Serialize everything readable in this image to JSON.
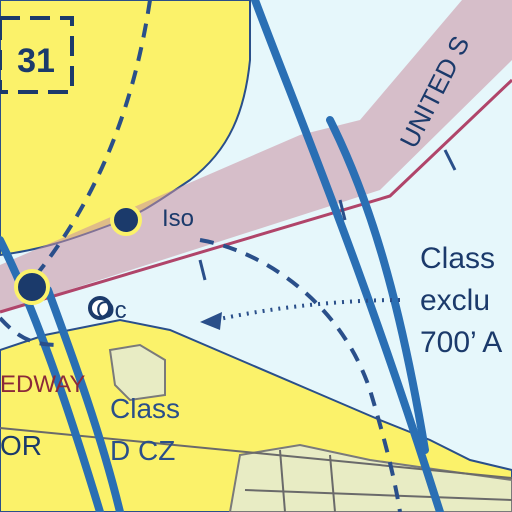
{
  "map": {
    "route_shield": "31",
    "label_iso": "Iso",
    "label_oc": "Oc",
    "boundary_label": "UNITED S",
    "airspace_note": {
      "line1": "Class",
      "line2": "exclu",
      "line3": "700’ A"
    },
    "speedway_label": "EDWAY",
    "class_d_label": {
      "line1": "Class",
      "line2": "D CZ"
    },
    "partial_label_left": "OR"
  },
  "colors": {
    "water": "#e6f7fb",
    "land": "#fbf26a",
    "urban": "#e8ecc4",
    "boundary_band": "#c98fa0",
    "boundary_edge": "#b0456a",
    "airway_blue": "#2a6fb4",
    "dark_blue": "#1b3a6b",
    "speedway_text": "#8b2a3a"
  }
}
